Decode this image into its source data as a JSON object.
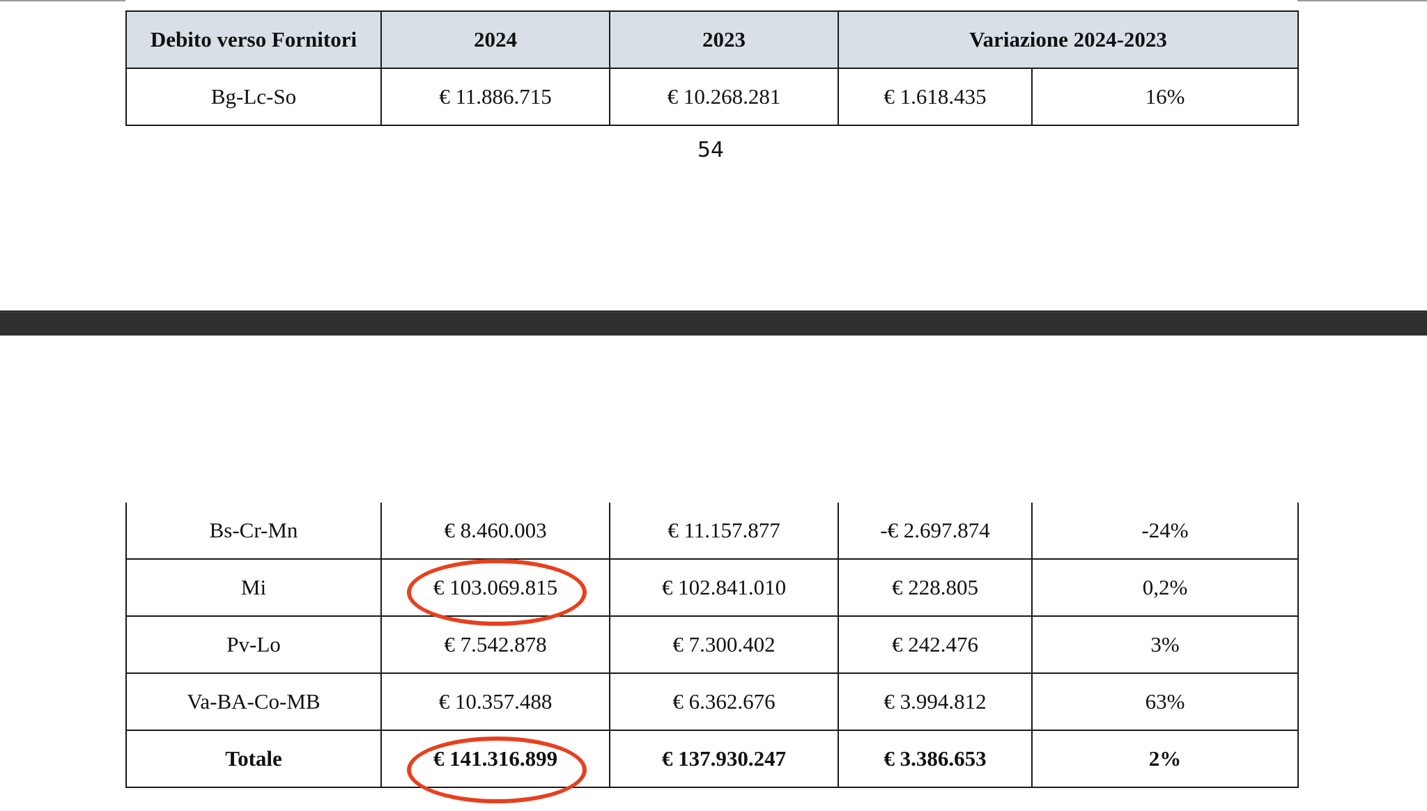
{
  "top_page": {
    "table": {
      "headers": [
        "Debito verso Fornitori",
        "2024",
        "2023",
        "Variazione 2024-2023"
      ],
      "row": [
        "Bg-Lc-So",
        "€ 11.886.715",
        "€ 10.268.281",
        "€ 1.618.435",
        "16%"
      ]
    },
    "page_number": "54"
  },
  "bottom_page": {
    "rows": [
      [
        "Bs-Cr-Mn",
        "€ 8.460.003",
        "€ 11.157.877",
        "-€ 2.697.874",
        "-24%"
      ],
      [
        "Mi",
        "€ 103.069.815",
        "€ 102.841.010",
        "€ 228.805",
        "0,2%"
      ],
      [
        "Pv-Lo",
        "€ 7.542.878",
        "€ 7.300.402",
        "€ 242.476",
        "3%"
      ],
      [
        "Va-BA-Co-MB",
        "€ 10.357.488",
        "€ 6.362.676",
        "€ 3.994.812",
        "63%"
      ]
    ],
    "total": [
      "Totale",
      "€ 141.316.899",
      "€ 137.930.247",
      "€ 3.386.653",
      "2%"
    ]
  },
  "annotation": {
    "color": "#e8401e"
  }
}
